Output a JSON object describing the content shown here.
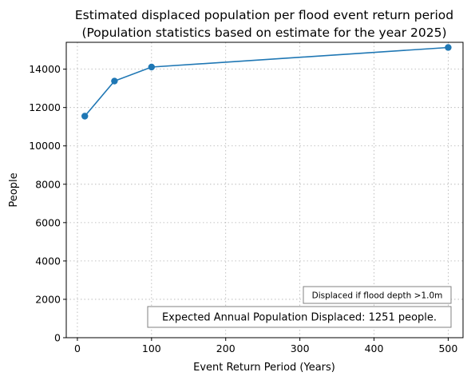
{
  "chart_data": {
    "type": "line",
    "title": "Estimated displaced population per flood event return period",
    "subtitle": "(Population statistics based on estimate for the year 2025)",
    "xlabel": "Event Return Period (Years)",
    "ylabel": "People",
    "xlim": [
      -15,
      520
    ],
    "ylim": [
      0,
      15400
    ],
    "xticks": [
      0,
      100,
      200,
      300,
      400,
      500
    ],
    "yticks": [
      0,
      2000,
      4000,
      6000,
      8000,
      10000,
      12000,
      14000
    ],
    "grid": true,
    "series": [
      {
        "color": "#1f77b4",
        "marker": "circle",
        "x": [
          10,
          50,
          100,
          500
        ],
        "y": [
          11550,
          13380,
          14110,
          15130
        ]
      }
    ],
    "annotations": [
      "Displaced if flood depth >1.0m",
      "Expected Annual Population Displaced: 1251 people."
    ]
  }
}
